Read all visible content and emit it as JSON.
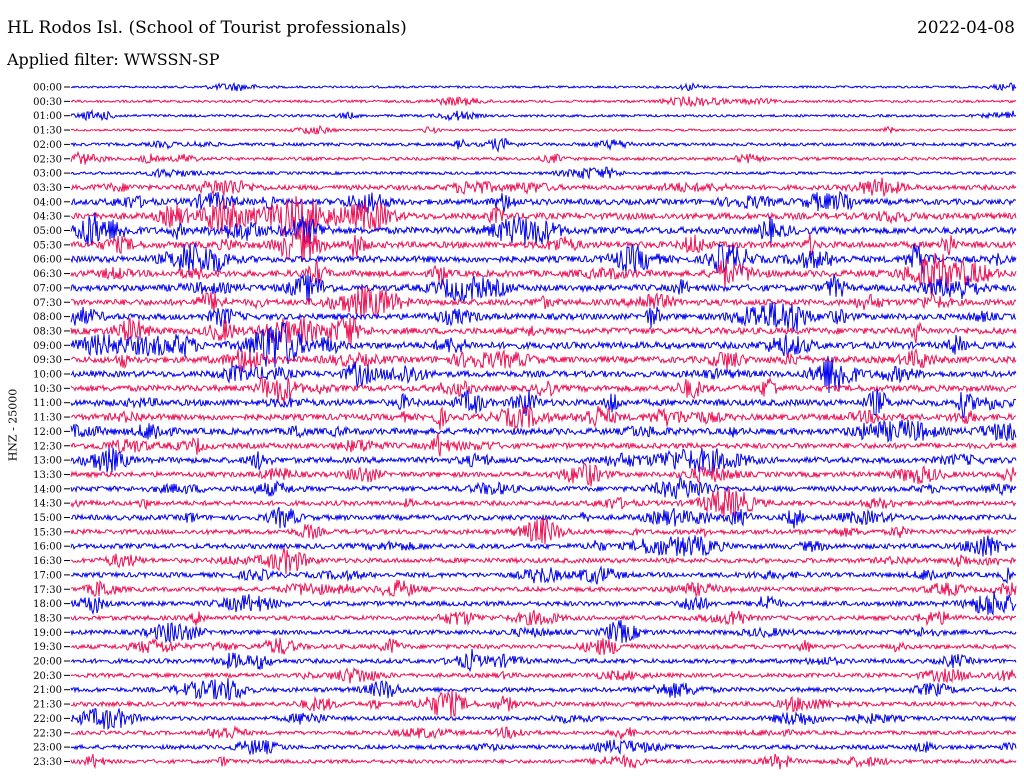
{
  "header": {
    "station": "HL Rodos Isl. (School of Tourist professionals)",
    "date": "2022-04-08",
    "filter": "Applied filter: WWSSN-SP",
    "channel_label": "HNZ - 25000"
  },
  "colors": {
    "even_trace": "#0000ee",
    "odd_trace": "#ee1155",
    "text": "#000000"
  },
  "chart_data": {
    "type": "line",
    "title": "",
    "ylabel": "HNZ - 25000",
    "xlabel": "",
    "grid": false,
    "rows": [
      {
        "time": "00:00",
        "activity": 0.15
      },
      {
        "time": "00:30",
        "activity": 0.2
      },
      {
        "time": "01:00",
        "activity": 0.2
      },
      {
        "time": "01:30",
        "activity": 0.15
      },
      {
        "time": "02:00",
        "activity": 0.3
      },
      {
        "time": "02:30",
        "activity": 0.3
      },
      {
        "time": "03:00",
        "activity": 0.25
      },
      {
        "time": "03:30",
        "activity": 0.55
      },
      {
        "time": "04:00",
        "activity": 0.7
      },
      {
        "time": "04:30",
        "activity": 0.8
      },
      {
        "time": "05:00",
        "activity": 0.85
      },
      {
        "time": "05:30",
        "activity": 0.8
      },
      {
        "time": "06:00",
        "activity": 0.8
      },
      {
        "time": "06:30",
        "activity": 0.8
      },
      {
        "time": "07:00",
        "activity": 0.8
      },
      {
        "time": "07:30",
        "activity": 0.75
      },
      {
        "time": "08:00",
        "activity": 0.75
      },
      {
        "time": "08:30",
        "activity": 0.8
      },
      {
        "time": "09:00",
        "activity": 0.85
      },
      {
        "time": "09:30",
        "activity": 0.8
      },
      {
        "time": "10:00",
        "activity": 0.75
      },
      {
        "time": "10:30",
        "activity": 0.75
      },
      {
        "time": "11:00",
        "activity": 0.8
      },
      {
        "time": "11:30",
        "activity": 0.75
      },
      {
        "time": "12:00",
        "activity": 0.8
      },
      {
        "time": "12:30",
        "activity": 0.65
      },
      {
        "time": "13:00",
        "activity": 0.7
      },
      {
        "time": "13:30",
        "activity": 0.6
      },
      {
        "time": "14:00",
        "activity": 0.6
      },
      {
        "time": "14:30",
        "activity": 0.55
      },
      {
        "time": "15:00",
        "activity": 0.6
      },
      {
        "time": "15:30",
        "activity": 0.55
      },
      {
        "time": "16:00",
        "activity": 0.6
      },
      {
        "time": "16:30",
        "activity": 0.55
      },
      {
        "time": "17:00",
        "activity": 0.55
      },
      {
        "time": "17:30",
        "activity": 0.5
      },
      {
        "time": "18:00",
        "activity": 0.55
      },
      {
        "time": "18:30",
        "activity": 0.5
      },
      {
        "time": "19:00",
        "activity": 0.5
      },
      {
        "time": "19:30",
        "activity": 0.5
      },
      {
        "time": "20:00",
        "activity": 0.5
      },
      {
        "time": "20:30",
        "activity": 0.45
      },
      {
        "time": "21:00",
        "activity": 0.5
      },
      {
        "time": "21:30",
        "activity": 0.5
      },
      {
        "time": "22:00",
        "activity": 0.45
      },
      {
        "time": "22:30",
        "activity": 0.4
      },
      {
        "time": "23:00",
        "activity": 0.45
      },
      {
        "time": "23:30",
        "activity": 0.4
      }
    ]
  }
}
